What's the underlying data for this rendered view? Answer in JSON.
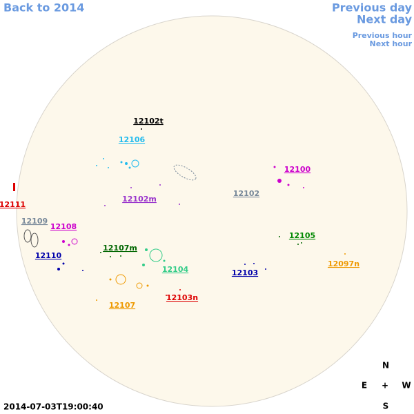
{
  "navigation": {
    "back": "Back to 2014",
    "previous_day": "Previous day",
    "next_day": "Next day",
    "previous_hour": "Previous hour",
    "next_hour": "Next hour"
  },
  "timestamp": "2014-07-03T19:00:40",
  "compass": {
    "north": "N",
    "east": "E",
    "center": "+",
    "west": "W",
    "south": "S"
  },
  "regions": [
    "12102t",
    "12106",
    "12100",
    "12102",
    "12102m",
    "12111",
    "12109",
    "12108",
    "12105",
    "12107m",
    "12110",
    "12097n",
    "12104",
    "12103",
    "12103n",
    "12107"
  ]
}
